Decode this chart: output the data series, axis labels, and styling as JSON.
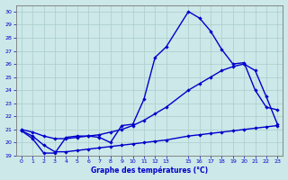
{
  "xlabel": "Graphe des températures (°C)",
  "xlim": [
    -0.5,
    23.5
  ],
  "ylim": [
    19,
    30.5
  ],
  "yticks": [
    19,
    20,
    21,
    22,
    23,
    24,
    25,
    26,
    27,
    28,
    29,
    30
  ],
  "xticks": [
    0,
    1,
    2,
    3,
    4,
    5,
    6,
    7,
    8,
    9,
    10,
    11,
    12,
    13,
    15,
    16,
    17,
    18,
    19,
    20,
    21,
    22,
    23
  ],
  "bg_color": "#cce8e8",
  "grid_color": "#aacccc",
  "line_color": "#0000cc",
  "line1_x": [
    0,
    1,
    2,
    3,
    4,
    5,
    6,
    7,
    8,
    9,
    10,
    11,
    12,
    13,
    15,
    16,
    17,
    18,
    19,
    20,
    21,
    22,
    23
  ],
  "line1_y": [
    20.9,
    20.3,
    19.2,
    19.2,
    20.4,
    20.5,
    20.5,
    20.4,
    20.0,
    21.3,
    21.4,
    23.3,
    26.5,
    27.3,
    30.0,
    29.5,
    28.5,
    27.1,
    26.0,
    26.1,
    24.0,
    22.7,
    22.5
  ],
  "line2_x": [
    0,
    1,
    2,
    3,
    4,
    5,
    6,
    7,
    8,
    9,
    10,
    11,
    12,
    13,
    15,
    16,
    17,
    18,
    19,
    20,
    21,
    22,
    23
  ],
  "line2_y": [
    21.0,
    20.8,
    20.5,
    20.3,
    20.3,
    20.4,
    20.5,
    20.6,
    20.8,
    21.0,
    21.3,
    21.7,
    22.2,
    22.7,
    24.0,
    24.5,
    25.0,
    25.5,
    25.8,
    26.0,
    25.5,
    23.5,
    21.4
  ],
  "line3_x": [
    0,
    1,
    2,
    3,
    4,
    5,
    6,
    7,
    8,
    9,
    10,
    11,
    12,
    13,
    15,
    16,
    17,
    18,
    19,
    20,
    21,
    22,
    23
  ],
  "line3_y": [
    20.9,
    20.5,
    19.8,
    19.3,
    19.3,
    19.4,
    19.5,
    19.6,
    19.7,
    19.8,
    19.9,
    20.0,
    20.1,
    20.2,
    20.5,
    20.6,
    20.7,
    20.8,
    20.9,
    21.0,
    21.1,
    21.2,
    21.3
  ]
}
